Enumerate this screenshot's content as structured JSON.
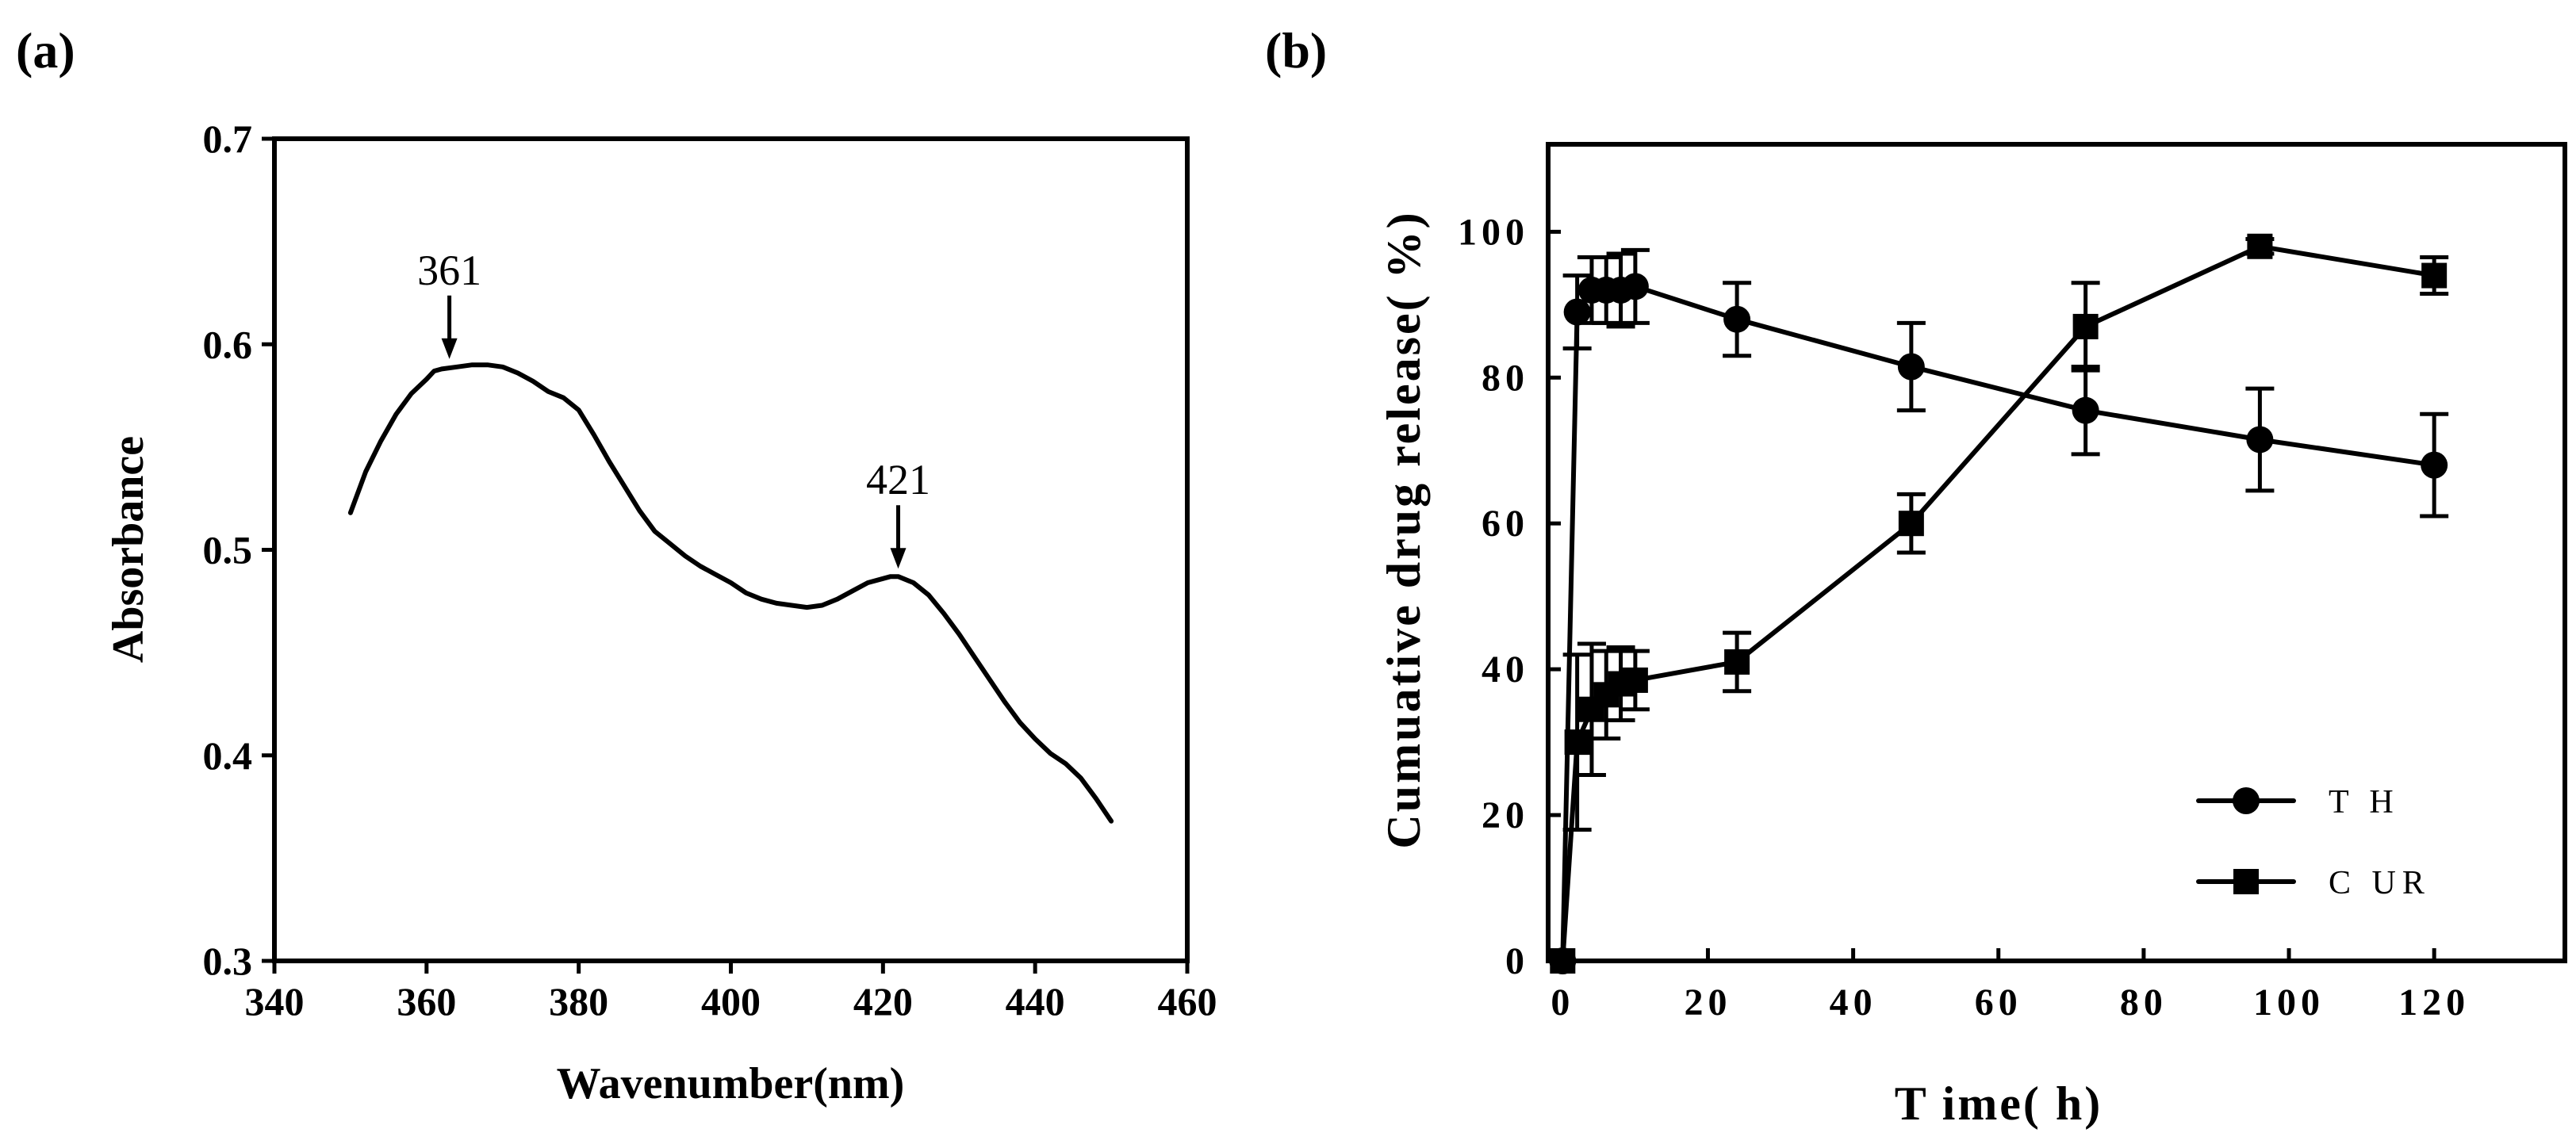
{
  "chart_data": [
    {
      "id": "a",
      "panel_label": "(a)",
      "type": "line",
      "title": "",
      "xlabel": "Wavenumber(nm)",
      "ylabel": "Absorbance",
      "xlim": [
        340,
        460
      ],
      "ylim": [
        0.3,
        0.7
      ],
      "xticks": [
        "340",
        "360",
        "380",
        "400",
        "420",
        "440",
        "460"
      ],
      "yticks": [
        "0.3",
        "0.4",
        "0.5",
        "0.6",
        "0.7"
      ],
      "series": [
        {
          "name": "Absorbance",
          "x": [
            350,
            352,
            354,
            356,
            358,
            360,
            361,
            362,
            364,
            366,
            368,
            370,
            372,
            374,
            376,
            378,
            380,
            382,
            384,
            386,
            388,
            390,
            392,
            394,
            396,
            398,
            400,
            402,
            404,
            406,
            408,
            410,
            412,
            414,
            416,
            418,
            420,
            421,
            422,
            424,
            426,
            428,
            430,
            432,
            434,
            436,
            438,
            440,
            442,
            444,
            446,
            448,
            450
          ],
          "y": [
            0.518,
            0.538,
            0.553,
            0.566,
            0.576,
            0.583,
            0.587,
            0.588,
            0.589,
            0.59,
            0.59,
            0.589,
            0.586,
            0.582,
            0.577,
            0.574,
            0.568,
            0.556,
            0.543,
            0.531,
            0.519,
            0.509,
            0.503,
            0.497,
            0.492,
            0.488,
            0.484,
            0.479,
            0.476,
            0.474,
            0.473,
            0.472,
            0.473,
            0.476,
            0.48,
            0.484,
            0.486,
            0.487,
            0.487,
            0.484,
            0.478,
            0.469,
            0.459,
            0.448,
            0.437,
            0.426,
            0.416,
            0.408,
            0.401,
            0.396,
            0.389,
            0.379,
            0.368
          ]
        }
      ],
      "annotations": [
        {
          "text": "361",
          "x": 363,
          "y": 0.589
        },
        {
          "text": "421",
          "x": 422,
          "y": 0.487
        }
      ]
    },
    {
      "id": "b",
      "panel_label": "(b)",
      "type": "line",
      "title": "",
      "xlabel": "T ime( h)",
      "ylabel": "Cumuative  drug release( %)",
      "xlim": [
        -2,
        138
      ],
      "ylim": [
        0,
        112
      ],
      "xticks": [
        0,
        20,
        40,
        60,
        80,
        100,
        120
      ],
      "yticks": [
        0,
        20,
        40,
        60,
        80,
        100
      ],
      "legend_position": "bottom-right",
      "series": [
        {
          "name": "T H",
          "marker": "circle",
          "x": [
            0,
            2,
            4,
            6,
            8,
            10,
            24,
            48,
            72,
            96,
            120
          ],
          "y": [
            0,
            89,
            92,
            92,
            92,
            92.5,
            88,
            81.5,
            75.5,
            71.5,
            68
          ],
          "err": [
            0,
            5,
            4.5,
            4.5,
            5,
            5,
            5,
            6,
            6,
            7,
            7
          ]
        },
        {
          "name": "C UR",
          "marker": "square",
          "x": [
            0,
            2,
            4,
            6,
            8,
            10,
            24,
            48,
            72,
            96,
            120
          ],
          "y": [
            0,
            30,
            34.5,
            36.5,
            38,
            38.5,
            41,
            60,
            87,
            98,
            94
          ],
          "err": [
            0,
            12,
            9,
            6,
            5,
            4,
            4,
            4,
            6,
            1,
            2.5
          ]
        }
      ]
    }
  ]
}
